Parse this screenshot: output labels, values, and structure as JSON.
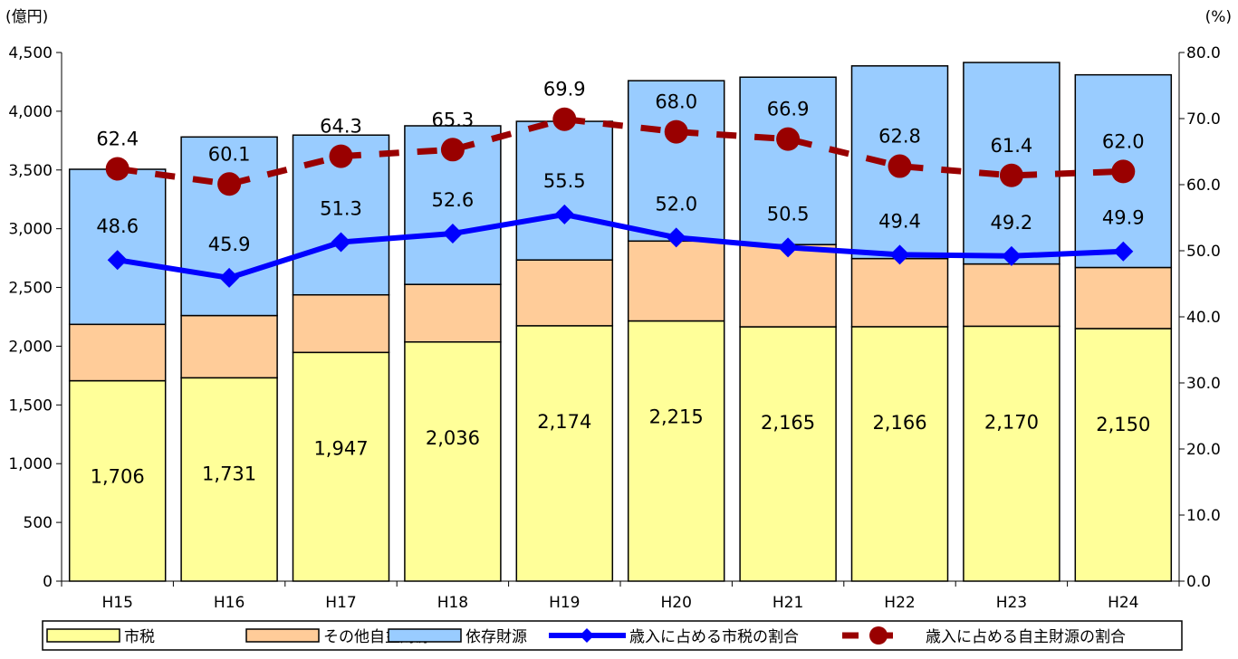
{
  "chart_data": {
    "type": "bar",
    "stacked": true,
    "dual_axis": true,
    "categories": [
      "H15",
      "H16",
      "H17",
      "H18",
      "H19",
      "H20",
      "H21",
      "H22",
      "H23",
      "H24"
    ],
    "y_left": {
      "unit_label": "(億円)",
      "ylim": [
        0,
        4500
      ],
      "ticks": [
        0,
        500,
        1000,
        1500,
        2000,
        2500,
        3000,
        3500,
        4000,
        4500
      ],
      "tick_labels": [
        "0",
        "500",
        "1,000",
        "1,500",
        "2,000",
        "2,500",
        "3,000",
        "3,500",
        "4,000",
        "4,500"
      ]
    },
    "y_right": {
      "unit_label": "(%)",
      "ylim": [
        0,
        80
      ],
      "ticks": [
        0,
        10,
        20,
        30,
        40,
        50,
        60,
        70,
        80
      ],
      "tick_labels": [
        "0.0",
        "10.0",
        "20.0",
        "30.0",
        "40.0",
        "50.0",
        "60.0",
        "70.0",
        "80.0"
      ]
    },
    "bar_series": [
      {
        "name": "市税",
        "color": "#FFFF99",
        "values": [
          1706,
          1731,
          1947,
          2036,
          2174,
          2215,
          2165,
          2166,
          2170,
          2150
        ],
        "labels": [
          "1,706",
          "1,731",
          "1,947",
          "2,036",
          "2,174",
          "2,215",
          "2,165",
          "2,166",
          "2,170",
          "2,150"
        ]
      },
      {
        "name": "その他自主財源",
        "color": "#FFCC99",
        "values": [
          480,
          530,
          490,
          490,
          560,
          680,
          700,
          580,
          530,
          520
        ]
      },
      {
        "name": "依存財源",
        "color": "#99CCFF",
        "values": [
          1320,
          1520,
          1360,
          1350,
          1180,
          1365,
          1425,
          1640,
          1715,
          1640
        ]
      }
    ],
    "line_series": [
      {
        "name": "歳入に占める市税の割合",
        "color": "#0000FF",
        "style": "solid",
        "marker": "diamond",
        "axis": "right",
        "values": [
          48.6,
          45.9,
          51.3,
          52.6,
          55.5,
          52.0,
          50.5,
          49.4,
          49.2,
          49.9
        ],
        "labels": [
          "48.6",
          "45.9",
          "51.3",
          "52.6",
          "55.5",
          "52.0",
          "50.5",
          "49.4",
          "49.2",
          "49.9"
        ]
      },
      {
        "name": "歳入に占める自主財源の割合",
        "color": "#990000",
        "style": "dashed",
        "marker": "circle",
        "axis": "right",
        "values": [
          62.4,
          60.1,
          64.3,
          65.3,
          69.9,
          68.0,
          66.9,
          62.8,
          61.4,
          62.0
        ],
        "labels": [
          "62.4",
          "60.1",
          "64.3",
          "65.3",
          "69.9",
          "68.0",
          "66.9",
          "62.8",
          "61.4",
          "62.0"
        ]
      }
    ],
    "legend_placement": "bottom",
    "grid": false
  }
}
